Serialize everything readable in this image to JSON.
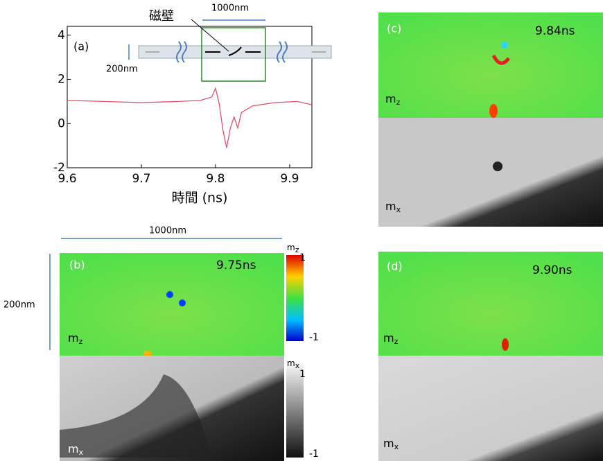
{
  "chart_data": {
    "type": "line",
    "x": [
      9.6,
      9.65,
      9.7,
      9.75,
      9.78,
      9.795,
      9.8,
      9.805,
      9.81,
      9.815,
      9.82,
      9.825,
      9.83,
      9.835,
      9.85,
      9.88,
      9.91,
      9.93
    ],
    "values": [
      1.05,
      1.0,
      0.95,
      1.0,
      1.05,
      1.2,
      1.6,
      0.9,
      -0.3,
      -1.1,
      -0.2,
      0.3,
      -0.2,
      0.5,
      0.8,
      0.95,
      1.0,
      0.85
    ],
    "color": "#e0506a",
    "xlim": [
      9.6,
      9.93
    ],
    "ylim": [
      -2,
      4.4
    ],
    "xticks": [
      9.6,
      9.7,
      9.8,
      9.9
    ],
    "yticks": [
      -2,
      0,
      2,
      4
    ],
    "x_label": "時間 (ns)",
    "panel_label": "(a)",
    "inset_wall": "磁壁",
    "inset_width": "1000nm",
    "inset_height": "200nm"
  },
  "panel_b": {
    "label": "(b)",
    "time": "9.75ns",
    "width": "1000nm",
    "height": "200nm"
  },
  "panel_c": {
    "label": "(c)",
    "time": "9.84ns"
  },
  "panel_d": {
    "label": "(d)",
    "time": "9.90ns"
  },
  "component_labels": {
    "m": "m",
    "z": "z",
    "x": "x"
  },
  "colorbars": {
    "max": "1",
    "min": "-1"
  }
}
